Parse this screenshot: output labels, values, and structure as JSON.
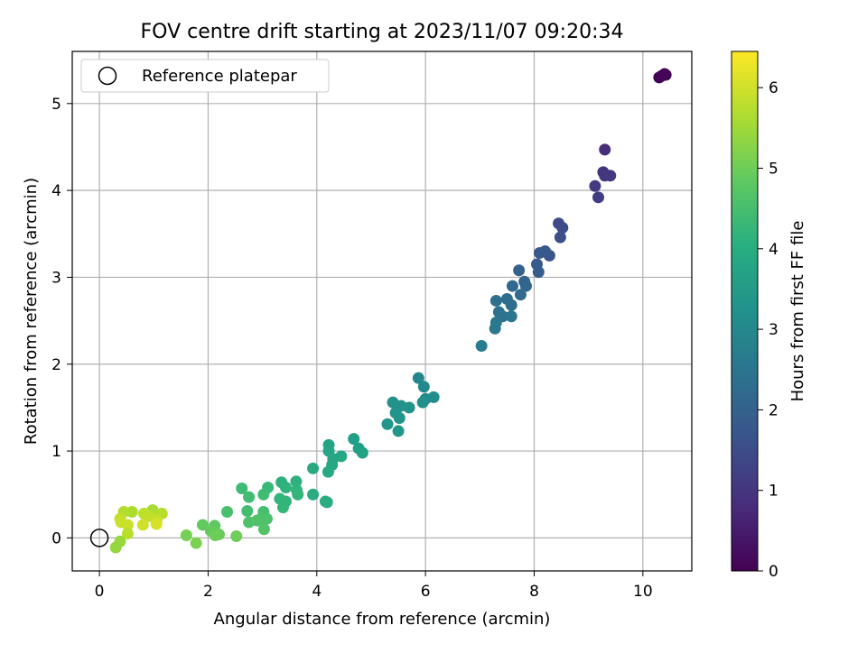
{
  "chart_data": {
    "type": "scatter",
    "title": "FOV centre drift starting at 2023/11/07 09:20:34",
    "xlabel": "Angular distance from reference (arcmin)",
    "ylabel": "Rotation from reference (arcmin)",
    "xlim": [
      -0.5,
      10.9
    ],
    "ylim": [
      -0.38,
      5.6
    ],
    "xticks": [
      "0",
      "2",
      "4",
      "6",
      "8",
      "10"
    ],
    "yticks": [
      "0",
      "1",
      "2",
      "3",
      "4",
      "5"
    ],
    "grid": true,
    "legend": {
      "location": "upper-left",
      "entries": [
        "Reference platepar"
      ]
    },
    "reference_point": {
      "x": 0,
      "y": 0
    },
    "colorbar": {
      "label": "Hours from first FF file",
      "range": [
        0,
        6.45
      ],
      "ticks": [
        "0",
        "1",
        "2",
        "3",
        "4",
        "5",
        "6"
      ],
      "colormap": "viridis"
    },
    "points": [
      {
        "x": 10.3,
        "y": 5.3,
        "c": 0.02
      },
      {
        "x": 10.35,
        "y": 5.32,
        "c": 0.05
      },
      {
        "x": 10.4,
        "y": 5.34,
        "c": 0.08
      },
      {
        "x": 10.42,
        "y": 5.33,
        "c": 0.1
      },
      {
        "x": 9.3,
        "y": 4.47,
        "c": 0.85
      },
      {
        "x": 9.27,
        "y": 4.21,
        "c": 0.95
      },
      {
        "x": 9.3,
        "y": 4.17,
        "c": 1.0
      },
      {
        "x": 9.4,
        "y": 4.17,
        "c": 1.05
      },
      {
        "x": 9.12,
        "y": 4.05,
        "c": 1.1
      },
      {
        "x": 9.18,
        "y": 3.92,
        "c": 1.15
      },
      {
        "x": 8.45,
        "y": 3.62,
        "c": 1.45
      },
      {
        "x": 8.52,
        "y": 3.57,
        "c": 1.5
      },
      {
        "x": 8.48,
        "y": 3.46,
        "c": 1.55
      },
      {
        "x": 8.28,
        "y": 3.25,
        "c": 1.7
      },
      {
        "x": 8.2,
        "y": 3.3,
        "c": 1.75
      },
      {
        "x": 8.1,
        "y": 3.28,
        "c": 1.8
      },
      {
        "x": 8.05,
        "y": 3.15,
        "c": 1.85
      },
      {
        "x": 8.08,
        "y": 3.06,
        "c": 1.9
      },
      {
        "x": 7.72,
        "y": 3.08,
        "c": 2.0
      },
      {
        "x": 7.82,
        "y": 2.95,
        "c": 2.05
      },
      {
        "x": 7.85,
        "y": 2.9,
        "c": 2.1
      },
      {
        "x": 7.6,
        "y": 2.9,
        "c": 2.15
      },
      {
        "x": 7.75,
        "y": 2.8,
        "c": 2.2
      },
      {
        "x": 7.5,
        "y": 2.75,
        "c": 2.25
      },
      {
        "x": 7.58,
        "y": 2.68,
        "c": 2.3
      },
      {
        "x": 7.3,
        "y": 2.73,
        "c": 2.35
      },
      {
        "x": 7.35,
        "y": 2.6,
        "c": 2.4
      },
      {
        "x": 7.42,
        "y": 2.55,
        "c": 2.45
      },
      {
        "x": 7.58,
        "y": 2.55,
        "c": 2.5
      },
      {
        "x": 7.3,
        "y": 2.48,
        "c": 2.55
      },
      {
        "x": 7.28,
        "y": 2.41,
        "c": 2.6
      },
      {
        "x": 7.03,
        "y": 2.21,
        "c": 2.7
      },
      {
        "x": 5.87,
        "y": 1.84,
        "c": 3.0
      },
      {
        "x": 5.97,
        "y": 1.74,
        "c": 3.05
      },
      {
        "x": 6.0,
        "y": 1.6,
        "c": 3.1
      },
      {
        "x": 6.15,
        "y": 1.62,
        "c": 3.15
      },
      {
        "x": 5.95,
        "y": 1.56,
        "c": 3.2
      },
      {
        "x": 5.4,
        "y": 1.56,
        "c": 3.25
      },
      {
        "x": 5.55,
        "y": 1.52,
        "c": 3.28
      },
      {
        "x": 5.7,
        "y": 1.5,
        "c": 3.3
      },
      {
        "x": 5.45,
        "y": 1.44,
        "c": 3.32
      },
      {
        "x": 5.52,
        "y": 1.38,
        "c": 3.35
      },
      {
        "x": 5.3,
        "y": 1.31,
        "c": 3.38
      },
      {
        "x": 5.5,
        "y": 1.23,
        "c": 3.4
      },
      {
        "x": 4.68,
        "y": 1.14,
        "c": 3.6
      },
      {
        "x": 4.77,
        "y": 1.03,
        "c": 3.65
      },
      {
        "x": 4.84,
        "y": 0.98,
        "c": 3.7
      },
      {
        "x": 4.22,
        "y": 1.07,
        "c": 3.75
      },
      {
        "x": 4.22,
        "y": 1.0,
        "c": 3.78
      },
      {
        "x": 4.45,
        "y": 0.94,
        "c": 3.8
      },
      {
        "x": 4.3,
        "y": 0.91,
        "c": 3.82
      },
      {
        "x": 4.28,
        "y": 0.84,
        "c": 3.85
      },
      {
        "x": 4.21,
        "y": 0.76,
        "c": 3.88
      },
      {
        "x": 3.93,
        "y": 0.8,
        "c": 3.9
      },
      {
        "x": 3.93,
        "y": 0.5,
        "c": 3.95
      },
      {
        "x": 4.16,
        "y": 0.42,
        "c": 3.98
      },
      {
        "x": 4.19,
        "y": 0.41,
        "c": 4.0
      },
      {
        "x": 3.62,
        "y": 0.65,
        "c": 4.1
      },
      {
        "x": 3.35,
        "y": 0.64,
        "c": 4.12
      },
      {
        "x": 3.43,
        "y": 0.58,
        "c": 4.15
      },
      {
        "x": 3.63,
        "y": 0.55,
        "c": 4.18
      },
      {
        "x": 3.65,
        "y": 0.5,
        "c": 4.2
      },
      {
        "x": 3.32,
        "y": 0.45,
        "c": 4.22
      },
      {
        "x": 3.43,
        "y": 0.42,
        "c": 4.25
      },
      {
        "x": 3.38,
        "y": 0.35,
        "c": 4.28
      },
      {
        "x": 3.1,
        "y": 0.58,
        "c": 4.35
      },
      {
        "x": 2.62,
        "y": 0.57,
        "c": 4.4
      },
      {
        "x": 3.02,
        "y": 0.5,
        "c": 4.42
      },
      {
        "x": 2.75,
        "y": 0.47,
        "c": 4.45
      },
      {
        "x": 2.72,
        "y": 0.31,
        "c": 4.5
      },
      {
        "x": 3.02,
        "y": 0.3,
        "c": 4.52
      },
      {
        "x": 2.35,
        "y": 0.3,
        "c": 4.55
      },
      {
        "x": 2.97,
        "y": 0.22,
        "c": 4.58
      },
      {
        "x": 3.08,
        "y": 0.22,
        "c": 4.6
      },
      {
        "x": 2.75,
        "y": 0.18,
        "c": 4.62
      },
      {
        "x": 2.9,
        "y": 0.2,
        "c": 4.65
      },
      {
        "x": 3.03,
        "y": 0.1,
        "c": 4.68
      },
      {
        "x": 2.12,
        "y": 0.14,
        "c": 4.8
      },
      {
        "x": 1.9,
        "y": 0.15,
        "c": 4.85
      },
      {
        "x": 2.05,
        "y": 0.08,
        "c": 4.9
      },
      {
        "x": 2.2,
        "y": 0.04,
        "c": 4.95
      },
      {
        "x": 2.13,
        "y": 0.03,
        "c": 5.0
      },
      {
        "x": 2.52,
        "y": 0.02,
        "c": 5.02
      },
      {
        "x": 1.6,
        "y": 0.03,
        "c": 5.1
      },
      {
        "x": 1.78,
        "y": -0.06,
        "c": 5.15
      },
      {
        "x": 0.98,
        "y": 0.32,
        "c": 5.6
      },
      {
        "x": 0.6,
        "y": 0.3,
        "c": 5.65
      },
      {
        "x": 0.45,
        "y": 0.3,
        "c": 5.7
      },
      {
        "x": 1.15,
        "y": 0.28,
        "c": 5.75
      },
      {
        "x": 0.82,
        "y": 0.28,
        "c": 5.8
      },
      {
        "x": 0.92,
        "y": 0.25,
        "c": 5.85
      },
      {
        "x": 0.38,
        "y": 0.22,
        "c": 5.88
      },
      {
        "x": 1.05,
        "y": 0.2,
        "c": 5.9
      },
      {
        "x": 0.4,
        "y": 0.18,
        "c": 5.92
      },
      {
        "x": 0.52,
        "y": 0.15,
        "c": 5.95
      },
      {
        "x": 0.8,
        "y": 0.15,
        "c": 6.0
      },
      {
        "x": 1.05,
        "y": 0.16,
        "c": 6.05
      },
      {
        "x": 0.52,
        "y": 0.05,
        "c": 5.75
      },
      {
        "x": 0.38,
        "y": -0.04,
        "c": 5.45
      },
      {
        "x": 0.3,
        "y": -0.11,
        "c": 5.4
      }
    ]
  }
}
